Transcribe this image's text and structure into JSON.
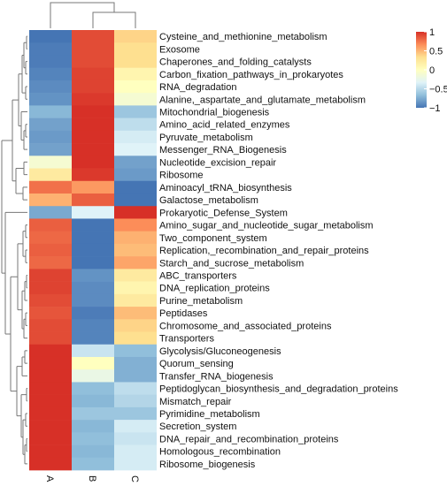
{
  "chart_data": {
    "type": "heatmap",
    "columns": [
      "A",
      "B",
      "C"
    ],
    "rows": [
      "Cysteine_and_methionine_metabolism",
      "Exosome",
      "Chaperones_and_folding_catalysts",
      "Carbon_fixation_pathways_in_prokaryotes",
      "RNA_degradation",
      "Alanine,_aspartate_and_glutamate_metabolism",
      "Mitochondrial_biogenesis",
      "Amino_acid_related_enzymes",
      "Pyruvate_metabolism",
      "Messenger_RNA_Biogenesis",
      "Nucleotide_excision_repair",
      "Ribosome",
      "Aminoacyl_tRNA_biosynthesis",
      "Galactose_metabolism",
      "Prokaryotic_Defense_System",
      "Amino_sugar_and_nucleotide_sugar_metabolism",
      "Two_component_system",
      "Replication,_recombination_and_repair_proteins",
      "Starch_and_sucrose_metabolism",
      "ABC_transporters",
      "DNA_replication_proteins",
      "Purine_metabolism",
      "Peptidases",
      "Chromosome_and_associated_proteins",
      "Transporters",
      "Glycolysis/Gluconeogenesis",
      "Quorum_sensing",
      "Transfer_RNA_biogenesis",
      "Peptidoglycan_biosynthesis_and_degradation_proteins",
      "Mismatch_repair",
      "Pyrimidine_metabolism",
      "Secretion_system",
      "DNA_repair_and_recombination_proteins",
      "Homologous_recombination",
      "Ribosome_biogenesis"
    ],
    "values": [
      [
        -1.0,
        0.85,
        0.2
      ],
      [
        -0.95,
        0.85,
        0.15
      ],
      [
        -0.95,
        0.85,
        0.15
      ],
      [
        -0.9,
        0.9,
        0.05
      ],
      [
        -0.85,
        0.9,
        0.0
      ],
      [
        -0.8,
        0.95,
        -0.05
      ],
      [
        -0.55,
        1.0,
        -0.45
      ],
      [
        -0.7,
        1.0,
        -0.3
      ],
      [
        -0.75,
        1.0,
        -0.2
      ],
      [
        -0.7,
        1.0,
        -0.15
      ],
      [
        -0.05,
        1.0,
        -0.7
      ],
      [
        0.1,
        0.95,
        -0.75
      ],
      [
        0.65,
        0.45,
        -1.0
      ],
      [
        0.35,
        0.75,
        -1.0
      ],
      [
        -0.65,
        -0.15,
        1.0
      ],
      [
        0.75,
        -1.0,
        0.5
      ],
      [
        0.7,
        -1.0,
        0.35
      ],
      [
        0.75,
        -1.0,
        0.3
      ],
      [
        0.7,
        -1.0,
        0.4
      ],
      [
        0.9,
        -0.8,
        0.1
      ],
      [
        0.9,
        -0.85,
        0.05
      ],
      [
        0.85,
        -0.85,
        0.1
      ],
      [
        0.8,
        -0.95,
        0.3
      ],
      [
        0.85,
        -0.9,
        0.2
      ],
      [
        0.85,
        -0.9,
        0.15
      ],
      [
        1.0,
        -0.25,
        -0.5
      ],
      [
        1.0,
        0.0,
        -0.6
      ],
      [
        1.0,
        -0.1,
        -0.6
      ],
      [
        1.0,
        -0.5,
        -0.3
      ],
      [
        1.0,
        -0.55,
        -0.35
      ],
      [
        1.0,
        -0.45,
        -0.45
      ],
      [
        1.0,
        -0.55,
        -0.2
      ],
      [
        1.0,
        -0.5,
        -0.25
      ],
      [
        1.0,
        -0.55,
        -0.2
      ],
      [
        1.0,
        -0.5,
        -0.2
      ]
    ],
    "legend": {
      "ticks": [
        1,
        0.5,
        0,
        -0.5,
        -1
      ],
      "tick_labels": [
        "1",
        "0.5",
        "0",
        "−0.5",
        "−1"
      ],
      "colors": [
        "#d73027",
        "#fc8d59",
        "#fee090",
        "#ffffbf",
        "#e0f3f8",
        "#91bfdb",
        "#4575b4"
      ],
      "placement": "top-right"
    }
  }
}
